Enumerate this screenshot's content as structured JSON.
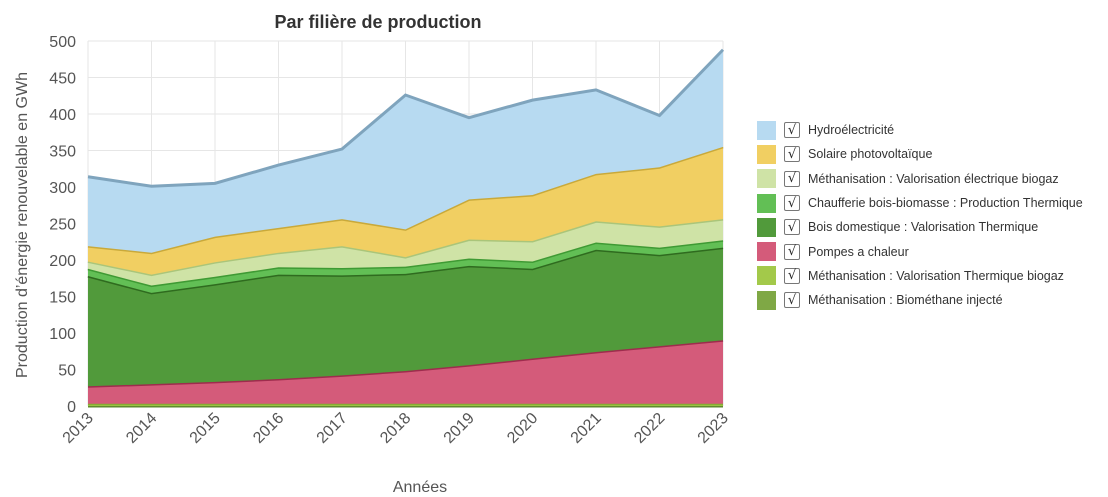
{
  "chart_data": {
    "type": "area",
    "stacked": true,
    "title": "Par filière de production",
    "xlabel": "Années",
    "ylabel": "Production d’énergie renouvelable en GWh",
    "ylim": [
      0,
      500
    ],
    "yticks": [
      "0",
      "50",
      "100",
      "150",
      "200",
      "250",
      "300",
      "350",
      "400",
      "450",
      "500"
    ],
    "x": [
      "2013",
      "2014",
      "2015",
      "2016",
      "2017",
      "2018",
      "2019",
      "2020",
      "2021",
      "2022",
      "2023"
    ],
    "grid": true,
    "legend_position": "right",
    "legend_check": "√",
    "series": [
      {
        "name": "Méthanisation : Biométhane injecté",
        "color": "#7fa845",
        "line": "#5f8a2e",
        "values": [
          0,
          0,
          0,
          0,
          0,
          0,
          0,
          0,
          0,
          0,
          0
        ]
      },
      {
        "name": "Méthanisation : Valorisation Thermique biogaz",
        "color": "#a3c94a",
        "line": "#86ad33",
        "values": [
          3,
          3,
          3,
          3,
          3,
          3,
          3,
          3,
          3,
          3,
          3
        ]
      },
      {
        "name": "Pompes a chaleur",
        "color": "#d45b7a",
        "line": "#9e2c4d",
        "values": [
          24,
          27,
          30,
          34,
          39,
          45,
          53,
          62,
          71,
          79,
          87
        ]
      },
      {
        "name": "Bois domestique : Valorisation Thermique",
        "color": "#519a3b",
        "line": "#2f6b1f",
        "values": [
          151,
          125,
          134,
          143,
          137,
          133,
          136,
          123,
          140,
          125,
          127
        ]
      },
      {
        "name": "Chaufferie bois-biomasse : Production Thermique",
        "color": "#62bf55",
        "line": "#3f9a34",
        "values": [
          10,
          10,
          10,
          10,
          10,
          10,
          10,
          10,
          10,
          10,
          10
        ]
      },
      {
        "name": "Méthanisation : Valorisation électrique biogaz",
        "color": "#cfe3a6",
        "line": "#aac57a",
        "values": [
          10,
          15,
          20,
          20,
          30,
          13,
          26,
          28,
          29,
          29,
          29
        ]
      },
      {
        "name": "Solaire photovoltaïque",
        "color": "#f1cf62",
        "line": "#c9a93a",
        "values": [
          21,
          30,
          35,
          34,
          37,
          38,
          55,
          63,
          65,
          81,
          99
        ]
      },
      {
        "name": "Hydroélectricité",
        "color": "#b7daf1",
        "line": "#7fa4bd",
        "values": [
          95,
          91,
          73,
          86,
          96,
          184,
          112,
          130,
          115,
          71,
          133
        ]
      }
    ]
  }
}
